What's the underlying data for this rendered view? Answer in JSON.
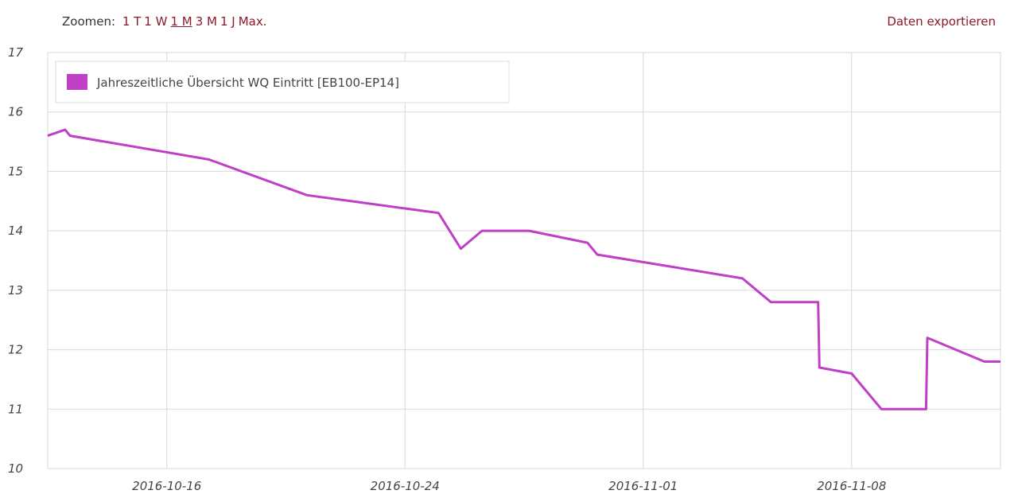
{
  "toolbar": {
    "zoom_label": "Zoomen:",
    "zoom_options": [
      "1 T",
      "1 W",
      "1 M",
      "3 M",
      "1 J",
      "Max."
    ],
    "active_zoom": "1 M",
    "export_label": "Daten exportieren"
  },
  "colors": {
    "series": "#c03fc6",
    "link": "#8b1a2b",
    "grid": "#d8d8d8"
  },
  "chart_data": {
    "type": "line",
    "title": "",
    "xlabel": "",
    "ylabel": "",
    "ylim": [
      10,
      17
    ],
    "xlim": [
      "2016-10-12",
      "2016-11-13"
    ],
    "yticks": [
      10,
      11,
      12,
      13,
      14,
      15,
      16,
      17
    ],
    "xticks": [
      "2016-10-16",
      "2016-10-24",
      "2016-11-01",
      "2016-11-08"
    ],
    "grid": true,
    "legend_position": "top-left",
    "series": [
      {
        "name": "Jahreszeitliche Übersicht WQ Eintritt [EB100-EP14]",
        "points": [
          [
            "2016-10-12",
            15.6
          ],
          [
            "2016-10-12T14:00",
            15.7
          ],
          [
            "2016-10-12T18:00",
            15.6
          ],
          [
            "2016-10-17T10:00",
            15.2
          ],
          [
            "2016-10-20T17:00",
            14.6
          ],
          [
            "2016-10-25T03:00",
            14.3
          ],
          [
            "2016-10-25T21:00",
            13.7
          ],
          [
            "2016-10-26T14:00",
            14.0
          ],
          [
            "2016-10-28T04:00",
            14.0
          ],
          [
            "2016-10-30T03:00",
            13.8
          ],
          [
            "2016-10-30T11:00",
            13.6
          ],
          [
            "2016-11-04T08:00",
            13.2
          ],
          [
            "2016-11-05T07:00",
            12.8
          ],
          [
            "2016-11-06T21:00",
            12.8
          ],
          [
            "2016-11-06T22:00",
            11.7
          ],
          [
            "2016-11-08T00:00",
            11.6
          ],
          [
            "2016-11-09T00:00",
            11.0
          ],
          [
            "2016-11-10T12:00",
            11.0
          ],
          [
            "2016-11-10T13:00",
            12.2
          ],
          [
            "2016-11-12T11:00",
            11.8
          ],
          [
            "2016-11-13T00:00",
            11.8
          ]
        ]
      }
    ]
  }
}
